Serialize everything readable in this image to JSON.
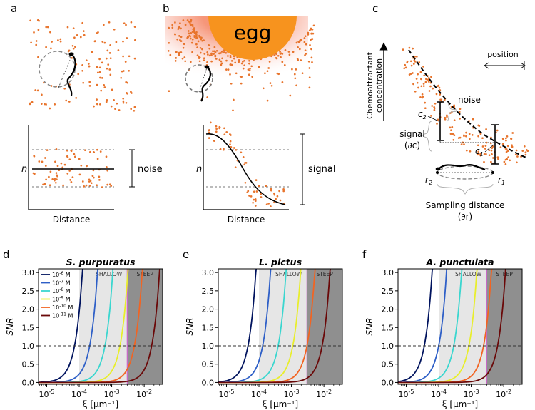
{
  "panels": {
    "a": {
      "letter": "a",
      "ylabel": "n",
      "xlabel": "Distance",
      "annotation": "noise"
    },
    "b": {
      "letter": "b",
      "egg_label": "egg",
      "ylabel": "n",
      "xlabel": "Distance",
      "annotation": "signal"
    },
    "c": {
      "letter": "c",
      "ylabel_line1": "Chemoattractant",
      "ylabel_line2": "concentration",
      "position_label": "position",
      "noise_label": "noise",
      "signal_label": "signal",
      "signal_symbol": "(∂c)",
      "c2_main": "c",
      "c2_sub": "2",
      "c1_main": "c",
      "c1_sub": "1",
      "r2_main": "r",
      "r2_sub": "2",
      "r1_main": "r",
      "r1_sub": "1",
      "sampling_label": "Sampling distance",
      "sampling_symbol": "(∂r)"
    }
  },
  "colors": {
    "dots": "#e8742c",
    "egg": "#f7931e",
    "shallow_bg": "#e6e6e6",
    "steep_bg": "#8f8f8f",
    "threshold_line": "#cc66cc"
  },
  "snr_charts": {
    "ylabel": "SNR",
    "xlabel": "ξ [μm⁻¹]",
    "shallow_label": "SHALLOW",
    "steep_label": "STEEP",
    "legend": [
      {
        "base": "10",
        "exp": "-6",
        "unit": " M",
        "color": "#00135e"
      },
      {
        "base": "10",
        "exp": "-7",
        "unit": " M",
        "color": "#2e5fc7"
      },
      {
        "base": "10",
        "exp": "-8",
        "unit": " M",
        "color": "#3ad6cf"
      },
      {
        "base": "10",
        "exp": "-9",
        "unit": " M",
        "color": "#e8ee2c"
      },
      {
        "base": "10",
        "exp": "-10",
        "unit": " M",
        "color": "#f26422"
      },
      {
        "base": "10",
        "exp": "-11",
        "unit": " M",
        "color": "#6a0808"
      }
    ],
    "y_ticks": [
      "0.0",
      "0.5",
      "1.0",
      "1.5",
      "2.0",
      "2.5",
      "3.0"
    ],
    "x_ticks": [
      {
        "base": "10",
        "exp": "-5"
      },
      {
        "base": "10",
        "exp": "-4"
      },
      {
        "base": "10",
        "exp": "-3"
      },
      {
        "base": "10",
        "exp": "-2"
      }
    ]
  },
  "chart_data": [
    {
      "type": "line",
      "letter": "d",
      "title": "S. purpuratus",
      "x_scale": "log",
      "xlim": [
        5.6e-06,
        0.037
      ],
      "ylim": [
        -0.05,
        3.1
      ],
      "shallow_region": [
        0.0001,
        0.003
      ],
      "steep_region": [
        0.003,
        0.037
      ],
      "reference_line": {
        "y": 1.0,
        "style": "dashed"
      },
      "series_x_at_snr1": [
        7.2e-05,
        0.00021,
        0.00062,
        0.0018,
        0.005,
        0.017
      ]
    },
    {
      "type": "line",
      "letter": "e",
      "title": "L. pictus",
      "x_scale": "log",
      "xlim": [
        5.6e-06,
        0.037
      ],
      "ylim": [
        -0.05,
        3.1
      ],
      "shallow_region": [
        0.0001,
        0.003
      ],
      "steep_region": [
        0.003,
        0.037
      ],
      "reference_line": {
        "y": 1.0,
        "style": "dashed"
      },
      "series_x_at_snr1": [
        4.6e-05,
        0.00013,
        0.00039,
        0.0011,
        0.003,
        0.0088
      ]
    },
    {
      "type": "line",
      "letter": "f",
      "title": "A. punctulata",
      "x_scale": "log",
      "xlim": [
        5.6e-06,
        0.037
      ],
      "ylim": [
        -0.05,
        3.1
      ],
      "shallow_region": [
        0.0001,
        0.003
      ],
      "steep_region": [
        0.003,
        0.037
      ],
      "reference_line": {
        "y": 1.0,
        "style": "dashed"
      },
      "series_x_at_snr1": [
        3.6e-05,
        0.0001,
        0.00029,
        0.00085,
        0.0024,
        0.0065
      ]
    }
  ]
}
